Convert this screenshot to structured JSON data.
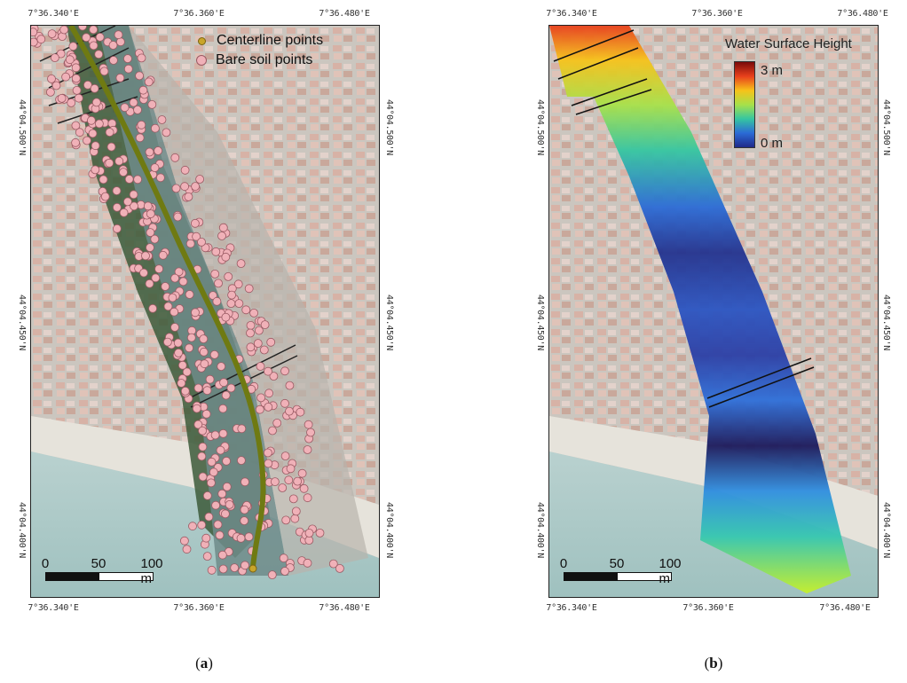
{
  "panels": [
    {
      "caption": "(a)",
      "caption_letter": "a",
      "top_coords": [
        "7°36.340'E",
        "7°36.360'E",
        "7°36.480'E"
      ],
      "bottom_coords": [
        "7°36.340'E",
        "7°36.360'E",
        "7°36.480'E"
      ],
      "left_coords": [
        "44°04.500'N",
        "44°04.450'N",
        "44°04.400'N"
      ],
      "right_coords": [
        "44°04.500'N",
        "44°04.450'N",
        "44°04.400'N"
      ],
      "legend": [
        {
          "label": "Centerline points",
          "symbol": "centerline-point"
        },
        {
          "label": "Bare soil points",
          "symbol": "bare-soil-point"
        }
      ],
      "scale_labels": [
        "0",
        "50",
        "100 m"
      ]
    },
    {
      "caption": "(b)",
      "caption_letter": "b",
      "top_coords": [
        "7°36.340'E",
        "7°36.360'E",
        "7°36.480'E"
      ],
      "bottom_coords": [
        "7°36.340'E",
        "7°36.360'E",
        "7°36.480'E"
      ],
      "left_coords": [
        "44°04.500'N",
        "44°04.450'N",
        "44°04.400'N"
      ],
      "right_coords": [
        "44°04.500'N",
        "44°04.450'N",
        "44°04.400'N"
      ],
      "water_surface": {
        "title": "Water Surface Height",
        "max_label": "3 m",
        "min_label": "0 m",
        "colors": [
          "#7a0a0a",
          "#e8401c",
          "#f7c21a",
          "#a7e14a",
          "#35c6a1",
          "#2b6bd6",
          "#1f2a8a"
        ]
      },
      "scale_labels": [
        "0",
        "50",
        "100 m"
      ]
    }
  ],
  "colors": {
    "centerline": "#6f7a12",
    "bare_soil_fill": "#f0b1b8",
    "bare_soil_stroke": "#9a5a63",
    "vegetation": "#3c5a3a",
    "river": "#6e8b8a",
    "sea": "#a9c7c5",
    "beach": "#e3e0d8",
    "roofs": "#d9b8ae"
  }
}
